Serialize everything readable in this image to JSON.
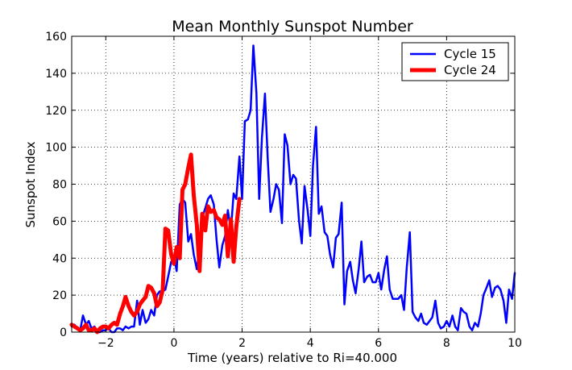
{
  "chart_data": {
    "type": "line",
    "title": "Mean Monthly Sunspot Number",
    "xlabel": "Time (years) relative to Ri=40.000",
    "ylabel": "Sunspot Index",
    "xlim": [
      -3,
      10
    ],
    "ylim": [
      0,
      160
    ],
    "xticks": [
      -2,
      0,
      2,
      4,
      6,
      8,
      10
    ],
    "xtick_labels": [
      "−2",
      "0",
      "2",
      "4",
      "6",
      "8",
      "10"
    ],
    "yticks": [
      0,
      20,
      40,
      60,
      80,
      100,
      120,
      140,
      160
    ],
    "grid": true,
    "legend_position": "top-right",
    "series": [
      {
        "name": "Cycle 15",
        "color": "#0000ff",
        "points": [
          [
            -3.0,
            3
          ],
          [
            -2.92,
            4
          ],
          [
            -2.83,
            2
          ],
          [
            -2.75,
            1
          ],
          [
            -2.67,
            9
          ],
          [
            -2.58,
            4
          ],
          [
            -2.5,
            6
          ],
          [
            -2.42,
            2
          ],
          [
            -2.33,
            3
          ],
          [
            -2.25,
            0
          ],
          [
            -2.17,
            0
          ],
          [
            -2.08,
            1
          ],
          [
            -2.0,
            1
          ],
          [
            -1.92,
            2
          ],
          [
            -1.83,
            0
          ],
          [
            -1.75,
            0
          ],
          [
            -1.67,
            2
          ],
          [
            -1.58,
            2
          ],
          [
            -1.5,
            1
          ],
          [
            -1.42,
            3
          ],
          [
            -1.33,
            2
          ],
          [
            -1.25,
            3
          ],
          [
            -1.17,
            3
          ],
          [
            -1.08,
            17
          ],
          [
            -1.0,
            4
          ],
          [
            -0.92,
            12
          ],
          [
            -0.83,
            5
          ],
          [
            -0.75,
            7
          ],
          [
            -0.67,
            12
          ],
          [
            -0.58,
            9
          ],
          [
            -0.5,
            20
          ],
          [
            -0.42,
            22
          ],
          [
            -0.33,
            22
          ],
          [
            -0.25,
            23
          ],
          [
            -0.17,
            30
          ],
          [
            -0.08,
            38
          ],
          [
            0.0,
            41
          ],
          [
            0.08,
            33
          ],
          [
            0.17,
            69
          ],
          [
            0.25,
            72
          ],
          [
            0.33,
            70
          ],
          [
            0.42,
            49
          ],
          [
            0.5,
            53
          ],
          [
            0.58,
            42
          ],
          [
            0.67,
            34
          ],
          [
            0.75,
            46
          ],
          [
            0.83,
            62
          ],
          [
            0.92,
            67
          ],
          [
            1.0,
            72
          ],
          [
            1.08,
            74
          ],
          [
            1.17,
            69
          ],
          [
            1.25,
            50
          ],
          [
            1.33,
            35
          ],
          [
            1.42,
            47
          ],
          [
            1.5,
            52
          ],
          [
            1.58,
            66
          ],
          [
            1.67,
            55
          ],
          [
            1.75,
            75
          ],
          [
            1.83,
            72
          ],
          [
            1.92,
            95
          ],
          [
            2.0,
            72
          ],
          [
            2.08,
            114
          ],
          [
            2.17,
            115
          ],
          [
            2.25,
            120
          ],
          [
            2.33,
            155
          ],
          [
            2.42,
            129
          ],
          [
            2.5,
            72
          ],
          [
            2.58,
            105
          ],
          [
            2.67,
            129
          ],
          [
            2.75,
            94
          ],
          [
            2.83,
            65
          ],
          [
            2.92,
            72
          ],
          [
            3.0,
            80
          ],
          [
            3.08,
            77
          ],
          [
            3.17,
            59
          ],
          [
            3.25,
            107
          ],
          [
            3.33,
            101
          ],
          [
            3.42,
            80
          ],
          [
            3.5,
            85
          ],
          [
            3.58,
            83
          ],
          [
            3.67,
            60
          ],
          [
            3.75,
            48
          ],
          [
            3.83,
            79
          ],
          [
            3.92,
            66
          ],
          [
            4.0,
            52
          ],
          [
            4.08,
            90
          ],
          [
            4.17,
            111
          ],
          [
            4.25,
            64
          ],
          [
            4.33,
            68
          ],
          [
            4.42,
            54
          ],
          [
            4.5,
            52
          ],
          [
            4.58,
            42
          ],
          [
            4.67,
            35
          ],
          [
            4.75,
            51
          ],
          [
            4.83,
            53
          ],
          [
            4.92,
            70
          ],
          [
            5.0,
            15
          ],
          [
            5.08,
            33
          ],
          [
            5.17,
            38
          ],
          [
            5.25,
            28
          ],
          [
            5.33,
            21
          ],
          [
            5.42,
            34
          ],
          [
            5.5,
            49
          ],
          [
            5.58,
            27
          ],
          [
            5.67,
            30
          ],
          [
            5.75,
            31
          ],
          [
            5.83,
            27
          ],
          [
            5.92,
            27
          ],
          [
            6.0,
            32
          ],
          [
            6.08,
            23
          ],
          [
            6.17,
            34
          ],
          [
            6.25,
            41
          ],
          [
            6.33,
            23
          ],
          [
            6.42,
            18
          ],
          [
            6.5,
            18
          ],
          [
            6.58,
            18
          ],
          [
            6.67,
            20
          ],
          [
            6.75,
            12
          ],
          [
            6.83,
            35
          ],
          [
            6.92,
            54
          ],
          [
            7.0,
            11
          ],
          [
            7.08,
            8
          ],
          [
            7.17,
            6
          ],
          [
            7.25,
            10
          ],
          [
            7.33,
            5
          ],
          [
            7.42,
            4
          ],
          [
            7.5,
            6
          ],
          [
            7.58,
            8
          ],
          [
            7.67,
            17
          ],
          [
            7.75,
            5
          ],
          [
            7.83,
            2
          ],
          [
            7.92,
            3
          ],
          [
            8.0,
            6
          ],
          [
            8.08,
            3
          ],
          [
            8.17,
            9
          ],
          [
            8.25,
            3
          ],
          [
            8.33,
            1
          ],
          [
            8.42,
            13
          ],
          [
            8.5,
            11
          ],
          [
            8.58,
            10
          ],
          [
            8.67,
            3
          ],
          [
            8.75,
            1
          ],
          [
            8.83,
            5
          ],
          [
            8.92,
            3
          ],
          [
            9.0,
            10
          ],
          [
            9.08,
            20
          ],
          [
            9.17,
            24
          ],
          [
            9.25,
            28
          ],
          [
            9.33,
            19
          ],
          [
            9.42,
            24
          ],
          [
            9.5,
            25
          ],
          [
            9.58,
            23
          ],
          [
            9.67,
            17
          ],
          [
            9.75,
            5
          ],
          [
            9.83,
            23
          ],
          [
            9.92,
            18
          ],
          [
            10.0,
            32
          ]
        ]
      },
      {
        "name": "Cycle 24",
        "color": "#ff0000",
        "points": [
          [
            -3.0,
            4
          ],
          [
            -2.92,
            3
          ],
          [
            -2.83,
            2
          ],
          [
            -2.75,
            1
          ],
          [
            -2.67,
            2
          ],
          [
            -2.58,
            4
          ],
          [
            -2.5,
            1
          ],
          [
            -2.42,
            1
          ],
          [
            -2.33,
            2
          ],
          [
            -2.25,
            0
          ],
          [
            -2.17,
            2
          ],
          [
            -2.08,
            3
          ],
          [
            -2.0,
            3
          ],
          [
            -1.92,
            2
          ],
          [
            -1.83,
            4
          ],
          [
            -1.75,
            5
          ],
          [
            -1.67,
            4
          ],
          [
            -1.58,
            10
          ],
          [
            -1.5,
            14
          ],
          [
            -1.42,
            19
          ],
          [
            -1.33,
            14
          ],
          [
            -1.25,
            11
          ],
          [
            -1.17,
            9
          ],
          [
            -1.08,
            11
          ],
          [
            -1.0,
            15
          ],
          [
            -0.92,
            17
          ],
          [
            -0.83,
            19
          ],
          [
            -0.75,
            25
          ],
          [
            -0.67,
            24
          ],
          [
            -0.58,
            21
          ],
          [
            -0.5,
            14
          ],
          [
            -0.42,
            16
          ],
          [
            -0.33,
            23
          ],
          [
            -0.25,
            56
          ],
          [
            -0.17,
            55
          ],
          [
            -0.08,
            42
          ],
          [
            0.0,
            37
          ],
          [
            0.08,
            46
          ],
          [
            0.17,
            40
          ],
          [
            0.25,
            77
          ],
          [
            0.33,
            80
          ],
          [
            0.42,
            89
          ],
          [
            0.5,
            96
          ],
          [
            0.58,
            74
          ],
          [
            0.67,
            58
          ],
          [
            0.75,
            33
          ],
          [
            0.83,
            64
          ],
          [
            0.92,
            55
          ],
          [
            1.0,
            68
          ],
          [
            1.08,
            65
          ],
          [
            1.17,
            66
          ],
          [
            1.25,
            62
          ],
          [
            1.33,
            61
          ],
          [
            1.42,
            58
          ],
          [
            1.5,
            63
          ],
          [
            1.58,
            41
          ],
          [
            1.67,
            61
          ],
          [
            1.75,
            38
          ],
          [
            1.83,
            57
          ],
          [
            1.92,
            72
          ]
        ]
      }
    ]
  }
}
